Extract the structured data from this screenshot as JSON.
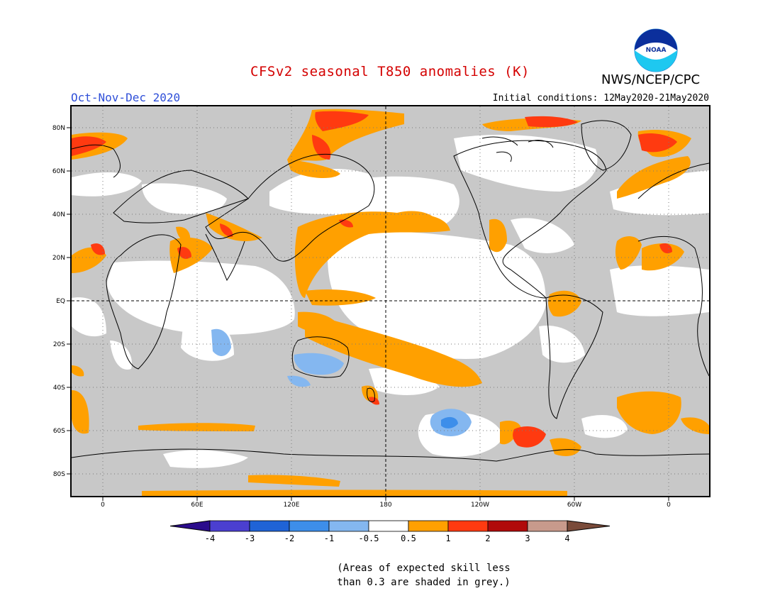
{
  "title": "CFSv2 seasonal T850 anomalies (K)",
  "agency": "NWS/NCEP/CPC",
  "season": "Oct-Nov-Dec 2020",
  "initial_conditions": "Initial conditions: 12May2020-21May2020",
  "logo_text": "NOAA",
  "lat_labels": [
    "80N",
    "60N",
    "40N",
    "20N",
    "EQ",
    "20S",
    "40S",
    "60S",
    "80S"
  ],
  "lon_labels": [
    "0",
    "60E",
    "120E",
    "180",
    "120W",
    "60W",
    "0"
  ],
  "colorbar": {
    "labels": [
      "-4",
      "-3",
      "-2",
      "-1",
      "-0.5",
      "0.5",
      "1",
      "2",
      "3",
      "4"
    ],
    "colors": [
      "#2b0c8c",
      "#4b3fd0",
      "#1f63d6",
      "#3d8eea",
      "#84b7f0",
      "#ffffff",
      "#ffa000",
      "#ff3a10",
      "#b00a0a",
      "#c89a8c",
      "#7a4b3a"
    ]
  },
  "colors": {
    "grey_low_skill": "#c8c8c8",
    "neutral": "#ffffff",
    "warm_0_5_1": "#ffa000",
    "warm_1_2": "#ff3a10",
    "cool_m1_m0_5": "#84b7f0",
    "cool_m2_m1": "#3d8eea"
  },
  "skill_note": [
    "(Areas of expected skill less",
    "than 0.3 are shaded in grey.)"
  ]
}
